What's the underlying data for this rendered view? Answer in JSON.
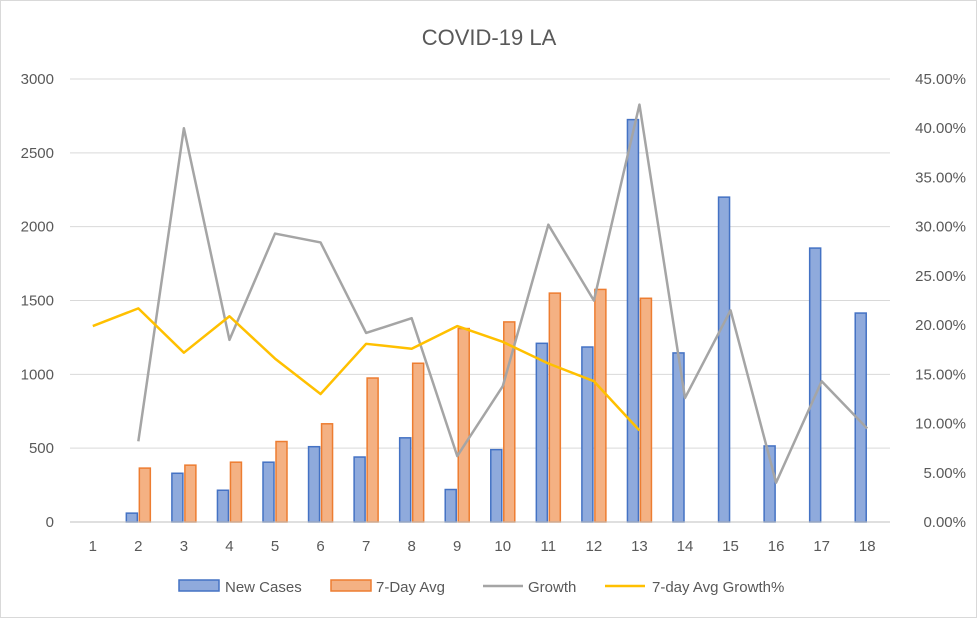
{
  "chart_data": {
    "type": "bar",
    "title": "COVID-19  LA",
    "categories": [
      "1",
      "2",
      "3",
      "4",
      "5",
      "6",
      "7",
      "8",
      "9",
      "10",
      "11",
      "12",
      "13",
      "14",
      "15",
      "16",
      "17",
      "18"
    ],
    "y_left": {
      "range": [
        0,
        3000
      ],
      "ticks": [
        "0",
        "500",
        "1000",
        "1500",
        "2000",
        "2500",
        "3000"
      ]
    },
    "y_right": {
      "range": [
        0,
        45
      ],
      "ticks": [
        "0.00%",
        "5.00%",
        "10.00%",
        "15.00%",
        "20.00%",
        "25.00%",
        "30.00%",
        "35.00%",
        "40.00%",
        "45.00%"
      ]
    },
    "grid": true,
    "legend_position": "bottom",
    "series": [
      {
        "name": "New Cases",
        "type": "bar",
        "axis": "left",
        "color": "#4472c4",
        "fill": "#8faadc",
        "values": [
          null,
          60,
          330,
          215,
          405,
          510,
          440,
          570,
          220,
          490,
          1210,
          1185,
          2725,
          1145,
          2200,
          515,
          1855,
          1415
        ]
      },
      {
        "name": "7-Day Avg",
        "type": "bar",
        "axis": "left",
        "color": "#ed7d31",
        "fill": "#f4b183",
        "values": [
          null,
          365,
          385,
          405,
          545,
          665,
          975,
          1075,
          1310,
          1355,
          1550,
          1575,
          1515,
          null,
          null,
          null,
          null,
          null
        ]
      },
      {
        "name": "Growth",
        "type": "line",
        "axis": "right",
        "color": "#a5a5a5",
        "values": [
          null,
          8.2,
          40.0,
          18.5,
          29.3,
          28.4,
          19.2,
          20.7,
          6.7,
          13.8,
          30.2,
          22.5,
          42.4,
          12.6,
          21.5,
          4.0,
          14.3,
          9.5
        ]
      },
      {
        "name": "7-day Avg Growth%",
        "type": "line",
        "axis": "right",
        "color": "#ffc000",
        "values": [
          19.9,
          21.7,
          17.2,
          20.9,
          16.6,
          13.0,
          18.1,
          17.6,
          19.9,
          18.3,
          16.1,
          14.3,
          9.3,
          null,
          null,
          null,
          null,
          null
        ]
      }
    ]
  }
}
